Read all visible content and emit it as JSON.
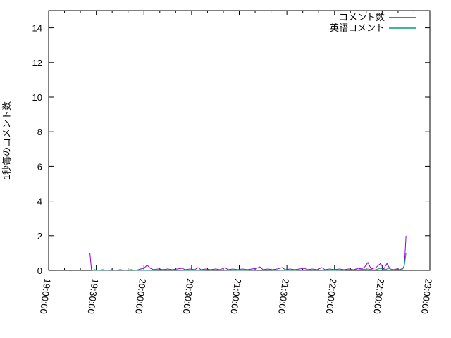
{
  "chart_data": {
    "type": "line",
    "title": "",
    "xlabel": "",
    "ylabel": "1秒毎のコメント数",
    "xlim": [
      "19:00:00",
      "23:00:00"
    ],
    "ylim": [
      0,
      15
    ],
    "y_ticks": [
      0,
      2,
      4,
      6,
      8,
      10,
      12,
      14
    ],
    "x_major_ticks": [
      "19:00:00",
      "19:30:00",
      "20:00:00",
      "20:30:00",
      "21:00:00",
      "21:30:00",
      "22:00:00",
      "22:30:00",
      "23:00:00"
    ],
    "x_minor_interval_minutes": 10,
    "grid": false,
    "legend_position": "top-right-inside",
    "axis_color": "#000000",
    "background_color": "#ffffff",
    "series": [
      {
        "name": "コメント数",
        "color": "#9400d3",
        "points": [
          [
            "19:26",
            1
          ],
          [
            "19:27",
            0
          ],
          [
            "19:29",
            0.04
          ],
          [
            "19:31",
            0
          ],
          [
            "19:34",
            0.04
          ],
          [
            "19:37",
            0
          ],
          [
            "19:40",
            0.04
          ],
          [
            "19:42",
            0
          ],
          [
            "19:45",
            0.04
          ],
          [
            "19:48",
            0
          ],
          [
            "19:52",
            0.04
          ],
          [
            "19:55",
            0
          ],
          [
            "19:58",
            0.08
          ],
          [
            "20:00",
            0.12
          ],
          [
            "20:02",
            0.3
          ],
          [
            "20:04",
            0.12
          ],
          [
            "20:06",
            0.04
          ],
          [
            "20:09",
            0.08
          ],
          [
            "20:12",
            0.04
          ],
          [
            "20:15",
            0.08
          ],
          [
            "20:18",
            0.04
          ],
          [
            "20:21",
            0.08
          ],
          [
            "20:24",
            0.12
          ],
          [
            "20:26",
            0.04
          ],
          [
            "20:29",
            0.08
          ],
          [
            "20:32",
            0.04
          ],
          [
            "20:34",
            0.16
          ],
          [
            "20:36",
            0.04
          ],
          [
            "20:39",
            0.08
          ],
          [
            "20:42",
            0.04
          ],
          [
            "20:45",
            0.08
          ],
          [
            "20:48",
            0.04
          ],
          [
            "20:51",
            0.16
          ],
          [
            "20:53",
            0.04
          ],
          [
            "20:56",
            0.08
          ],
          [
            "20:59",
            0.04
          ],
          [
            "21:02",
            0.08
          ],
          [
            "21:05",
            0.04
          ],
          [
            "21:08",
            0.08
          ],
          [
            "21:11",
            0.12
          ],
          [
            "21:13",
            0.2
          ],
          [
            "21:15",
            0.04
          ],
          [
            "21:18",
            0.08
          ],
          [
            "21:21",
            0.04
          ],
          [
            "21:24",
            0.08
          ],
          [
            "21:27",
            0.16
          ],
          [
            "21:29",
            0.04
          ],
          [
            "21:32",
            0.08
          ],
          [
            "21:35",
            0.04
          ],
          [
            "21:38",
            0.08
          ],
          [
            "21:41",
            0.12
          ],
          [
            "21:43",
            0.04
          ],
          [
            "21:46",
            0.08
          ],
          [
            "21:49",
            0.04
          ],
          [
            "21:52",
            0.16
          ],
          [
            "21:54",
            0.04
          ],
          [
            "21:57",
            0.08
          ],
          [
            "22:00",
            0.04
          ],
          [
            "22:03",
            0.08
          ],
          [
            "22:06",
            0.04
          ],
          [
            "22:09",
            0.08
          ],
          [
            "22:12",
            0.04
          ],
          [
            "22:15",
            0.12
          ],
          [
            "22:17",
            0.08
          ],
          [
            "22:19",
            0.2
          ],
          [
            "22:21",
            0.45
          ],
          [
            "22:23",
            0.08
          ],
          [
            "22:26",
            0.16
          ],
          [
            "22:29",
            0.4
          ],
          [
            "22:31",
            0.08
          ],
          [
            "22:33",
            0.4
          ],
          [
            "22:35",
            0.08
          ],
          [
            "22:37",
            0.04
          ],
          [
            "22:39",
            0.08
          ],
          [
            "22:41",
            0.04
          ],
          [
            "22:43",
            0.12
          ],
          [
            "22:44",
            0.3
          ],
          [
            "22:45",
            2
          ]
        ]
      },
      {
        "name": "英語コメント",
        "color": "#009e73",
        "points": [
          [
            "19:28",
            0
          ],
          [
            "19:45",
            0.02
          ],
          [
            "20:00",
            0
          ],
          [
            "20:15",
            0.02
          ],
          [
            "20:30",
            0
          ],
          [
            "20:45",
            0.02
          ],
          [
            "21:00",
            0
          ],
          [
            "21:15",
            0.02
          ],
          [
            "21:30",
            0
          ],
          [
            "21:45",
            0.02
          ],
          [
            "22:00",
            0
          ],
          [
            "22:15",
            0.04
          ],
          [
            "22:21",
            0.08
          ],
          [
            "22:25",
            0.02
          ],
          [
            "22:29",
            0.12
          ],
          [
            "22:32",
            0.04
          ],
          [
            "22:34",
            0.12
          ],
          [
            "22:37",
            0.02
          ],
          [
            "22:41",
            0.04
          ],
          [
            "22:43",
            0.08
          ],
          [
            "22:44",
            0.3
          ],
          [
            "22:45",
            1
          ]
        ]
      }
    ]
  }
}
